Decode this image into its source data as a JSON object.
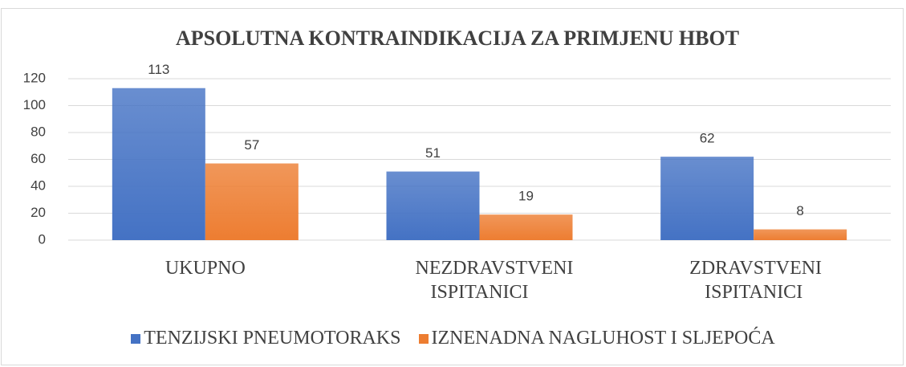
{
  "chart_data": {
    "type": "bar",
    "title": "APSOLUTNA KONTRAINDIKACIJA ZA PRIMJENU HBOT",
    "categories": [
      "UKUPNO",
      "NEZDRAVSTVENI ISPITANICI",
      "ZDRAVSTVENI ISPITANICI"
    ],
    "series": [
      {
        "name": "TENZIJSKI PNEUMOTORAKS",
        "color": "#4472c4",
        "values": [
          113,
          51,
          62
        ]
      },
      {
        "name": "IZNENADNA NAGLUHOST I SLJEPOĆA",
        "color": "#ed7d31",
        "values": [
          57,
          19,
          8
        ]
      }
    ],
    "ylim": [
      0,
      120
    ],
    "yticks": [
      0,
      20,
      40,
      60,
      80,
      100,
      120
    ],
    "grid": true
  }
}
